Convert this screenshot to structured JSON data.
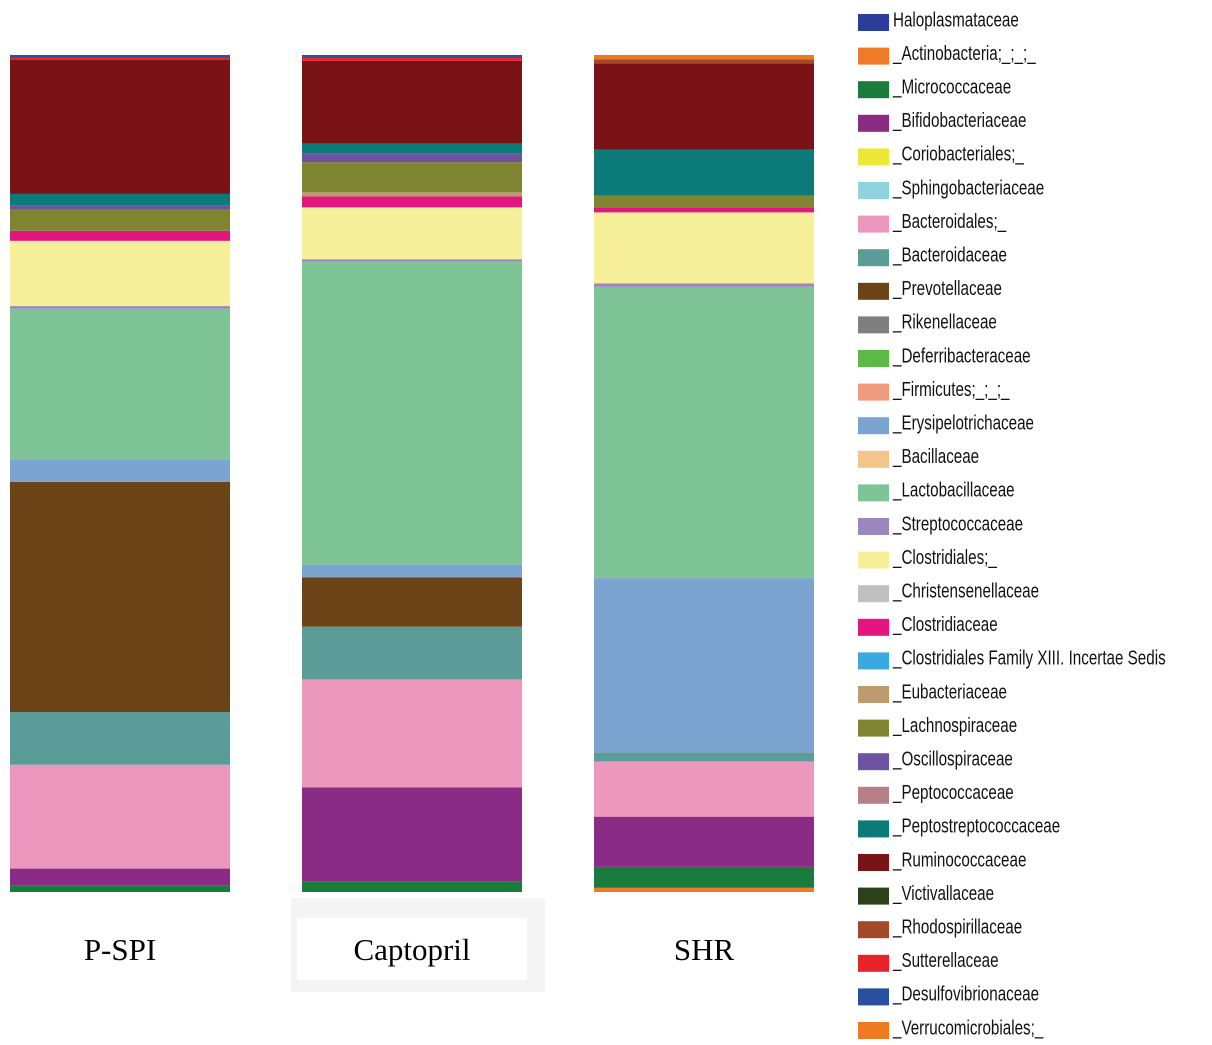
{
  "chart_data": {
    "type": "stacked_bar",
    "categories": [
      "P-SPI",
      "Captopril",
      "SHR"
    ],
    "ylim": [
      0,
      100
    ],
    "series": [
      {
        "name": "Haloplasmataceae",
        "color": "#2c3e99",
        "values": [
          0,
          0,
          0
        ]
      },
      {
        "name": "_Actinobacteria;_;_;_",
        "color": "#ef7a2a",
        "values": [
          0,
          0,
          0.5
        ]
      },
      {
        "name": "_Micrococcaceae",
        "color": "#1a7c3c",
        "values": [
          0.8,
          1.3,
          2.5
        ]
      },
      {
        "name": "_Bifidobacteriaceae",
        "color": "#8a2b86",
        "values": [
          2,
          11.2,
          6
        ]
      },
      {
        "name": "_Coriobacteriales;_",
        "color": "#ece83a",
        "values": [
          0,
          0,
          0
        ]
      },
      {
        "name": "_Sphingobacteriaceae",
        "color": "#8fd3e0",
        "values": [
          0,
          0,
          0
        ]
      },
      {
        "name": "_Bacteroidales;_",
        "color": "#ec98bd",
        "values": [
          12.4,
          12.9,
          6.6
        ]
      },
      {
        "name": "_Bacteroidaceae",
        "color": "#5b9c99",
        "values": [
          6.3,
          6.3,
          1.1
        ]
      },
      {
        "name": "_Prevotellaceae",
        "color": "#6b4317",
        "values": [
          27.5,
          5.9,
          0
        ]
      },
      {
        "name": "_Rikenellaceae",
        "color": "#7f7f7f",
        "values": [
          0,
          0,
          0
        ]
      },
      {
        "name": "_Deferribacteraceae",
        "color": "#5cb946",
        "values": [
          0,
          0,
          0
        ]
      },
      {
        "name": "_Firmicutes;_;_;_",
        "color": "#f09a7e",
        "values": [
          0,
          0,
          0
        ]
      },
      {
        "name": "_Erysipelotrichaceae",
        "color": "#7ba4d1",
        "values": [
          2.7,
          1.5,
          20.8
        ]
      },
      {
        "name": "_Bacillaceae",
        "color": "#f5c48a",
        "values": [
          0,
          0,
          0
        ]
      },
      {
        "name": "_Lactobacillaceae",
        "color": "#7fc497",
        "values": [
          18,
          36.2,
          34.8
        ]
      },
      {
        "name": "_Streptococcaceae",
        "color": "#9b86be",
        "values": [
          0.3,
          0.3,
          0.4
        ]
      },
      {
        "name": "_Clostridiales;_",
        "color": "#f6f09b",
        "values": [
          7.8,
          6.2,
          8.5
        ]
      },
      {
        "name": "_Christensenellaceae",
        "color": "#c0c0c0",
        "values": [
          0,
          0,
          0
        ]
      },
      {
        "name": "_Clostridiaceae",
        "color": "#e3157e",
        "values": [
          1.2,
          1.3,
          0.6
        ]
      },
      {
        "name": "_Clostridiales Family XIII. Incertae Sedis",
        "color": "#3aa9e0",
        "values": [
          0,
          0,
          0
        ]
      },
      {
        "name": "_Eubacteriaceae",
        "color": "#bf9a6e",
        "values": [
          0,
          0.5,
          0
        ]
      },
      {
        "name": "_Lachnospiraceae",
        "color": "#808532",
        "values": [
          2.5,
          3.6,
          1.4
        ]
      },
      {
        "name": "_Oscillospiraceae",
        "color": "#6e53a0",
        "values": [
          0.5,
          1,
          0
        ]
      },
      {
        "name": "_Peptococcaceae",
        "color": "#b97f88",
        "values": [
          0,
          0,
          0
        ]
      },
      {
        "name": "_Peptostreptococcaceae",
        "color": "#0b7a78",
        "values": [
          1.4,
          1.2,
          5.5
        ]
      },
      {
        "name": "_Ruminococcaceae",
        "color": "#7a1315",
        "values": [
          16,
          9.9,
          10.3
        ]
      },
      {
        "name": "_Victivallaceae",
        "color": "#2b4119",
        "values": [
          0,
          0,
          0
        ]
      },
      {
        "name": "_Rhodospirillaceae",
        "color": "#a4482a",
        "values": [
          0,
          0,
          0.5
        ]
      },
      {
        "name": "_Sutterellaceae",
        "color": "#e8242a",
        "values": [
          0.3,
          0.4,
          0
        ]
      },
      {
        "name": "_Desulfovibrionaceae",
        "color": "#2a4ea0",
        "values": [
          0.3,
          0.3,
          0
        ]
      },
      {
        "name": "_Verrucomicrobiales;_",
        "color": "#ee7a22",
        "values": [
          0,
          0,
          0.5
        ]
      }
    ]
  }
}
